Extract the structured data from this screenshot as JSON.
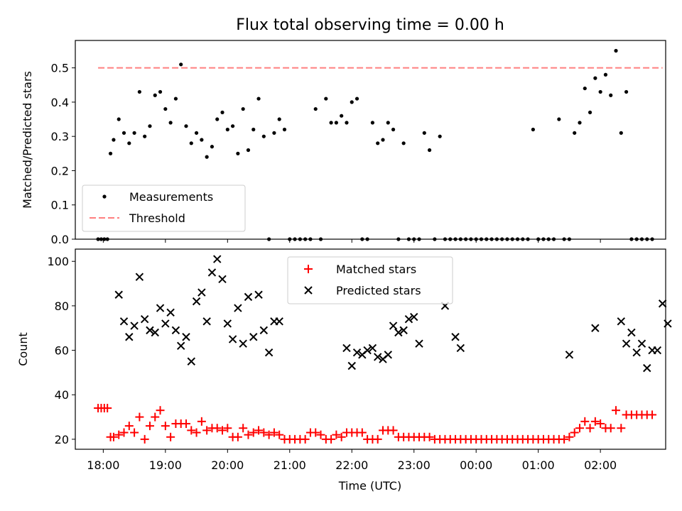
{
  "figure": {
    "title": "Flux total observing time = 0.00 h",
    "xlabel": "Time (UTC)"
  },
  "colors": {
    "measurement": "#000000",
    "threshold": "#ff7f7f",
    "matched": "#ff0000",
    "predicted": "#000000"
  },
  "chart_data": [
    {
      "type": "scatter",
      "ylabel": "Matched/Predicted stars",
      "ylim": [
        0,
        0.58
      ],
      "yticks": [
        "0.0",
        "0.1",
        "0.2",
        "0.3",
        "0.4",
        "0.5"
      ],
      "xticks_minutes": [
        0,
        60,
        120,
        180,
        240,
        300,
        360,
        420,
        480
      ],
      "xlim_minutes": [
        -27,
        543
      ],
      "legend_position": "lower-left",
      "series": [
        {
          "name": "Measurements",
          "x": [
            -5,
            -2,
            1,
            4,
            7,
            10,
            15,
            20,
            25,
            30,
            35,
            40,
            45,
            50,
            55,
            60,
            65,
            70,
            75,
            80,
            85,
            90,
            95,
            100,
            105,
            110,
            115,
            120,
            125,
            130,
            135,
            140,
            145,
            150,
            155,
            160,
            165,
            170,
            175,
            180,
            185,
            190,
            195,
            200,
            205,
            210,
            215,
            220,
            225,
            230,
            235,
            240,
            245,
            250,
            255,
            260,
            265,
            270,
            275,
            280,
            285,
            290,
            295,
            300,
            305,
            310,
            315,
            320,
            325,
            330,
            335,
            340,
            345,
            350,
            355,
            360,
            365,
            370,
            375,
            380,
            385,
            390,
            395,
            400,
            405,
            410,
            415,
            420,
            425,
            430,
            435,
            440,
            445,
            450,
            455,
            460,
            465,
            470,
            475,
            480,
            485,
            490,
            495,
            500,
            505,
            510,
            515,
            520,
            525,
            530
          ],
          "y": [
            0,
            0,
            0,
            0,
            0.25,
            0.29,
            0.35,
            0.31,
            0.28,
            0.31,
            0.43,
            0.3,
            0.33,
            0.42,
            0.43,
            0.38,
            0.34,
            0.41,
            0.51,
            0.33,
            0.28,
            0.31,
            0.29,
            0.24,
            0.27,
            0.35,
            0.37,
            0.32,
            0.33,
            0.25,
            0.38,
            0.26,
            0.32,
            0.41,
            0.3,
            0,
            0.31,
            0.35,
            0.32,
            0,
            0,
            0,
            0,
            0,
            0.38,
            0,
            0.41,
            0.34,
            0.34,
            0.36,
            0.34,
            0.4,
            0.41,
            0,
            0,
            0.34,
            0.28,
            0.29,
            0.34,
            0.32,
            0,
            0.28,
            0,
            0,
            0,
            0.31,
            0.26,
            0,
            0.3,
            0,
            0,
            0,
            0,
            0,
            0,
            0,
            0,
            0,
            0,
            0,
            0,
            0,
            0,
            0,
            0,
            0,
            0.32,
            0,
            0,
            0,
            0,
            0.35,
            0,
            0,
            0.31,
            0.34,
            0.44,
            0.37,
            0.47,
            0.43,
            0.48,
            0.42,
            0.55,
            0.31,
            0.43,
            0,
            0,
            0,
            0,
            0
          ]
        },
        {
          "name": "Threshold",
          "x": [
            -5,
            540
          ],
          "y": [
            0.5,
            0.5
          ]
        }
      ]
    },
    {
      "type": "scatter",
      "ylabel": "Count",
      "ylim": [
        15.5,
        105.5
      ],
      "yticks": [
        "20",
        "40",
        "60",
        "80",
        "100"
      ],
      "xticks_minutes": [
        0,
        60,
        120,
        180,
        240,
        300,
        360,
        420,
        480
      ],
      "xticklabels": [
        "18:00",
        "19:00",
        "20:00",
        "21:00",
        "22:00",
        "23:00",
        "00:00",
        "01:00",
        "02:00"
      ],
      "xlim_minutes": [
        -27,
        543
      ],
      "legend_position": "upper-center",
      "series": [
        {
          "name": "Matched stars",
          "x": [
            -5,
            -2,
            1,
            4,
            7,
            10,
            15,
            20,
            25,
            30,
            35,
            40,
            45,
            50,
            55,
            60,
            65,
            70,
            75,
            80,
            85,
            90,
            95,
            100,
            105,
            110,
            115,
            120,
            125,
            130,
            135,
            140,
            145,
            150,
            155,
            160,
            165,
            170,
            175,
            180,
            185,
            190,
            195,
            200,
            205,
            210,
            215,
            220,
            225,
            230,
            235,
            240,
            245,
            250,
            255,
            260,
            265,
            270,
            275,
            280,
            285,
            290,
            295,
            300,
            305,
            310,
            315,
            320,
            325,
            330,
            335,
            340,
            345,
            350,
            355,
            360,
            365,
            370,
            375,
            380,
            385,
            390,
            395,
            400,
            405,
            410,
            415,
            420,
            425,
            430,
            435,
            440,
            445,
            450,
            455,
            460,
            465,
            470,
            475,
            480,
            485,
            490,
            495,
            500,
            505,
            510,
            515,
            520,
            525,
            530
          ],
          "y": [
            34,
            34,
            34,
            34,
            21,
            21,
            22,
            23,
            26,
            23,
            30,
            20,
            26,
            30,
            33,
            26,
            21,
            27,
            27,
            27,
            24,
            23,
            28,
            24,
            25,
            25,
            24,
            25,
            21,
            21,
            25,
            22,
            23,
            24,
            23,
            22,
            23,
            22,
            20,
            20,
            20,
            20,
            20,
            23,
            23,
            22,
            20,
            20,
            22,
            21,
            23,
            23,
            23,
            23,
            20,
            20,
            20,
            24,
            24,
            24,
            21,
            21,
            21,
            21,
            21,
            21,
            21,
            20,
            20,
            20,
            20,
            20,
            20,
            20,
            20,
            20,
            20,
            20,
            20,
            20,
            20,
            20,
            20,
            20,
            20,
            20,
            20,
            20,
            20,
            20,
            20,
            20,
            20,
            21,
            23,
            25,
            28,
            25,
            28,
            27,
            25,
            25,
            33,
            25,
            31,
            31,
            31,
            31,
            31,
            31
          ]
        },
        {
          "name": "Predicted stars",
          "x": [
            15,
            20,
            25,
            30,
            35,
            40,
            45,
            50,
            55,
            60,
            65,
            70,
            75,
            80,
            85,
            90,
            95,
            100,
            105,
            110,
            115,
            120,
            125,
            130,
            135,
            140,
            145,
            150,
            155,
            160,
            165,
            170,
            235,
            240,
            245,
            250,
            255,
            260,
            265,
            270,
            275,
            280,
            285,
            290,
            295,
            300,
            305,
            330,
            340,
            345,
            450,
            475,
            500,
            505,
            510,
            515,
            520,
            525,
            530,
            535,
            540,
            545
          ],
          "y": [
            85,
            73,
            66,
            71,
            93,
            74,
            69,
            68,
            79,
            72,
            77,
            69,
            62,
            66,
            55,
            82,
            86,
            73,
            95,
            101,
            92,
            72,
            65,
            79,
            63,
            84,
            66,
            85,
            69,
            59,
            73,
            73,
            61,
            53,
            59,
            58,
            60,
            61,
            57,
            56,
            58,
            71,
            68,
            69,
            74,
            75,
            63,
            80,
            66,
            61,
            58,
            70,
            73,
            63,
            68,
            59,
            63,
            52,
            60,
            60,
            81,
            72
          ]
        }
      ]
    }
  ]
}
